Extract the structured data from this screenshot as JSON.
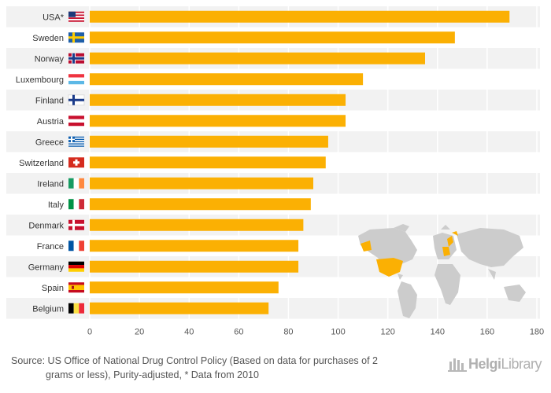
{
  "chart_data": {
    "type": "bar",
    "orientation": "horizontal",
    "categories": [
      "USA*",
      "Sweden",
      "Norway",
      "Luxembourg",
      "Finland",
      "Austria",
      "Greece",
      "Switzerland",
      "Ireland",
      "Italy",
      "Denmark",
      "France",
      "Germany",
      "Spain",
      "Belgium"
    ],
    "values": [
      169,
      147,
      135,
      110,
      103,
      103,
      96,
      95,
      90,
      89,
      86,
      84,
      84,
      76,
      72
    ],
    "xlim": [
      0,
      180
    ],
    "xticks": [
      "0",
      "20",
      "40",
      "60",
      "80",
      "100",
      "120",
      "140",
      "160",
      "180"
    ],
    "bar_color": "#fbb003",
    "grid": true,
    "flags": [
      "us-flag",
      "sweden-flag",
      "norway-flag",
      "luxembourg-flag",
      "finland-flag",
      "austria-flag",
      "greece-flag",
      "switzerland-flag",
      "ireland-flag",
      "italy-flag",
      "denmark-flag",
      "france-flag",
      "germany-flag",
      "spain-flag",
      "belgium-flag"
    ]
  },
  "source": {
    "line1": "Source: US Office of National Drug Control Policy (Based on data for purchases of 2",
    "line2": "grams or less), Purity-adjusted, * Data from 2010"
  },
  "logo": {
    "brand_part1": "Helgi",
    "brand_part2": "Library",
    "icon": "helgi-logo-icon"
  }
}
